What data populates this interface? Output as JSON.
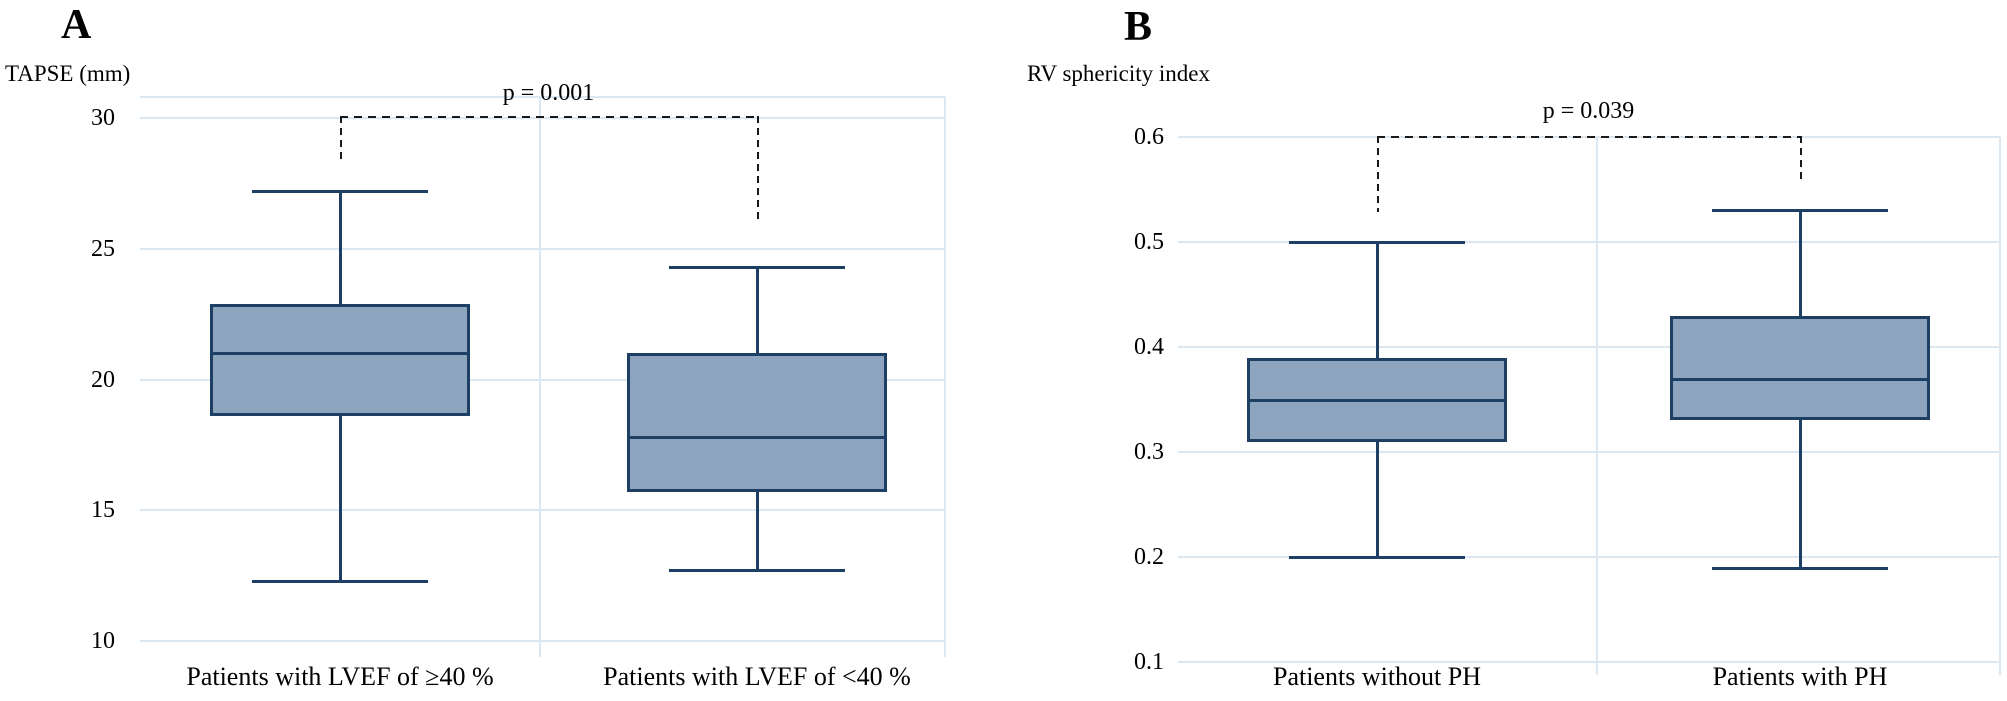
{
  "figure": {
    "background": "#ffffff",
    "box_fill": "#8DA4BE",
    "box_stroke": "#1C3F63",
    "gridline_color": "#DCE8F1",
    "bracket_color": "#1A1A1A",
    "text_color": "#000000"
  },
  "chart_data": [
    {
      "type": "boxplot",
      "panel": "A",
      "ylabel": "TAPSE (mm)",
      "ylim": [
        10,
        30
      ],
      "yticks": [
        30,
        25,
        20,
        15,
        10
      ],
      "ytick_labels": [
        "30",
        "25",
        "20",
        "15",
        "10"
      ],
      "grid": true,
      "legend": "none",
      "categories": [
        "Patients with LVEF of ≥40 %",
        "Patients with LVEF of <40 %"
      ],
      "series": [
        {
          "name": "Patients with LVEF of ≥40 %",
          "whisker_low": 12.3,
          "q1": 18.6,
          "median": 21.0,
          "q3": 22.9,
          "whisker_high": 27.2
        },
        {
          "name": "Patients with LVEF of <40 %",
          "whisker_low": 12.7,
          "q1": 15.7,
          "median": 17.8,
          "q3": 21.0,
          "whisker_high": 24.3
        }
      ],
      "significance": {
        "label": "p = 0.001",
        "between": [
          "Patients with LVEF of ≥40 %",
          "Patients with LVEF of <40 %"
        ],
        "style": "dashed-bracket"
      }
    },
    {
      "type": "boxplot",
      "panel": "B",
      "ylabel": "RV sphericity index",
      "ylim": [
        0.1,
        0.6
      ],
      "yticks": [
        0.6,
        0.5,
        0.4,
        0.3,
        0.2,
        0.1
      ],
      "ytick_labels": [
        "0.6",
        "0.5",
        "0.4",
        "0.3",
        "0.2",
        "0.1"
      ],
      "grid": true,
      "legend": "none",
      "categories": [
        "Patients without PH",
        "Patients with PH"
      ],
      "series": [
        {
          "name": "Patients without PH",
          "whisker_low": 0.2,
          "q1": 0.31,
          "median": 0.35,
          "q3": 0.39,
          "whisker_high": 0.5
        },
        {
          "name": "Patients with PH",
          "whisker_low": 0.19,
          "q1": 0.33,
          "median": 0.37,
          "q3": 0.43,
          "whisker_high": 0.53
        }
      ],
      "significance": {
        "label": "p = 0.039",
        "between": [
          "Patients without PH",
          "Patients with PH"
        ],
        "style": "dashed-bracket"
      }
    }
  ]
}
